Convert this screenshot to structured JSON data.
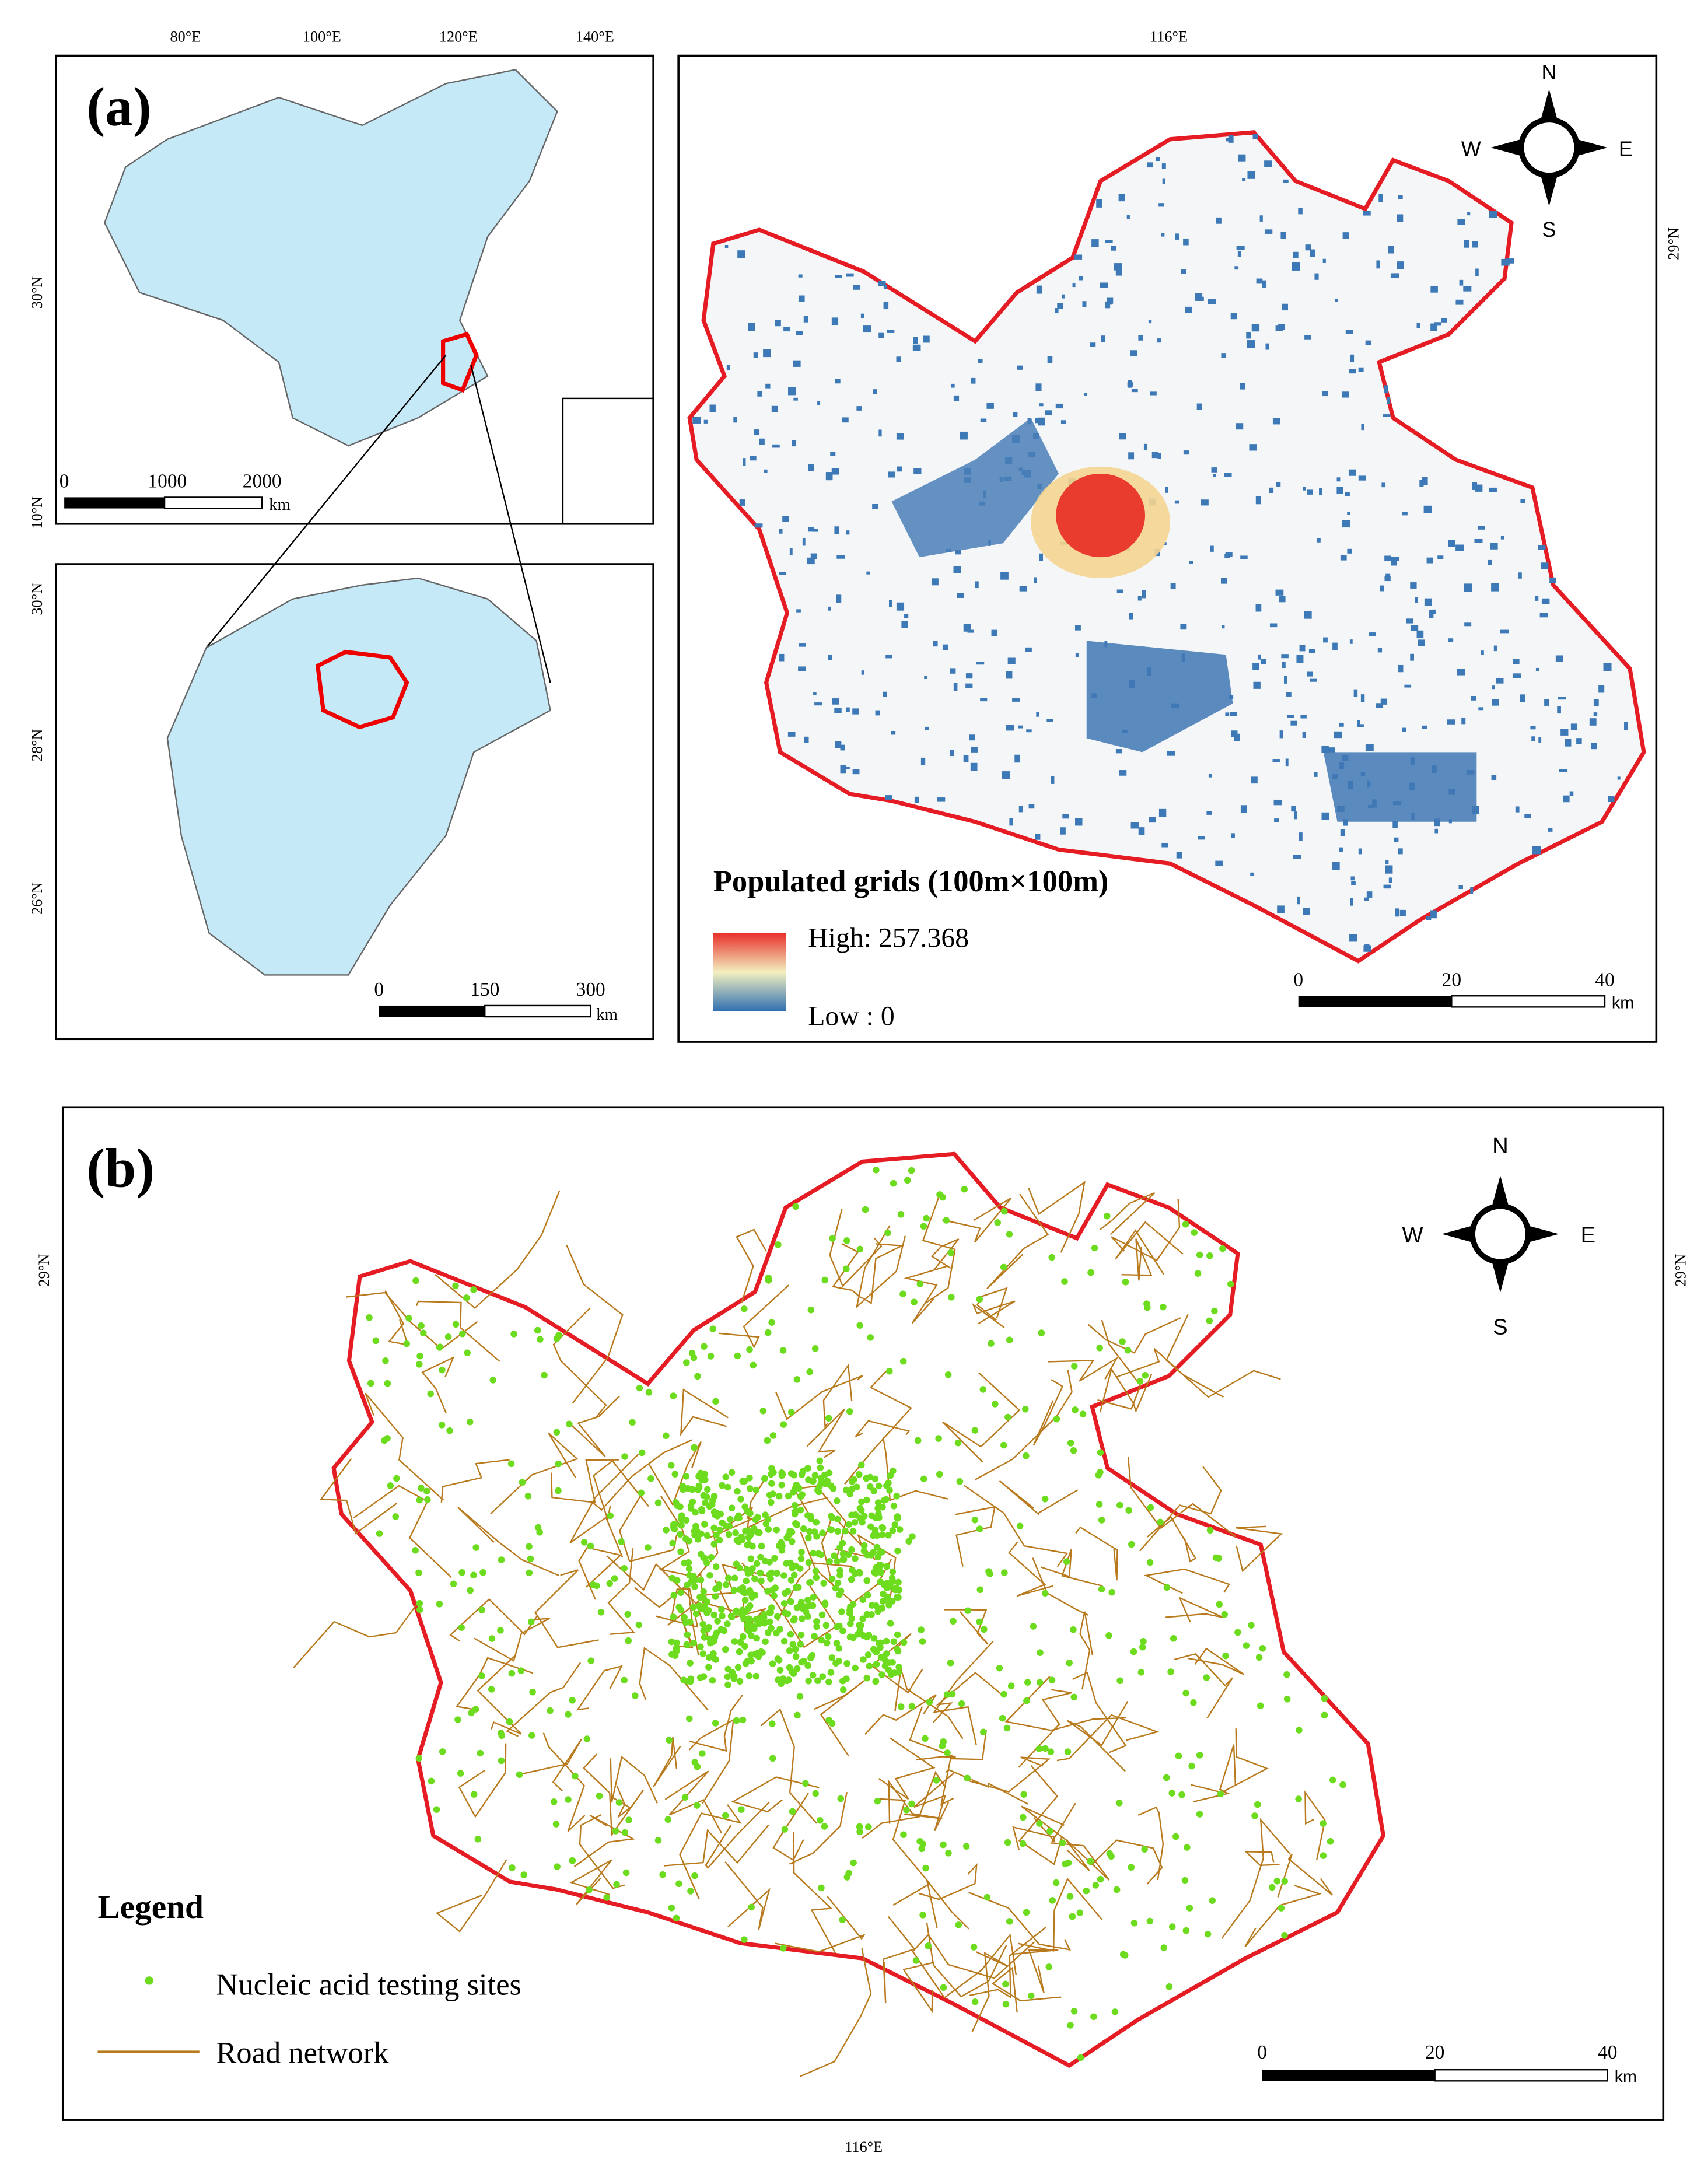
{
  "panel_a": {
    "label": "(a)",
    "china_map": {
      "lon_labels": [
        "80°E",
        "100°E",
        "120°E",
        "140°E"
      ],
      "lat_labels": [
        "30°N",
        "10°N"
      ],
      "scale": [
        "0",
        "1000",
        "2000",
        "km"
      ]
    },
    "province_map": {
      "lat_labels": [
        "30°N",
        "28°N",
        "26°N"
      ],
      "scale": [
        "0",
        "150",
        "300",
        "km"
      ]
    },
    "city_map": {
      "lon_label": "116°E",
      "lat_label": "29°N",
      "compass": [
        "N",
        "E",
        "S",
        "W"
      ],
      "legend_title": "Populated grids (100m×100m)",
      "legend_high": "High: 257.368",
      "legend_low": "Low : 0",
      "scale": [
        "0",
        "20",
        "40",
        "km"
      ]
    }
  },
  "panel_b": {
    "label": "(b)",
    "lon_label": "116°E",
    "lat_label": "29°N",
    "compass": [
      "N",
      "E",
      "S",
      "W"
    ],
    "legend": {
      "title": "Legend",
      "items": [
        "Nucleic acid testing sites",
        "Road network"
      ]
    },
    "scale": [
      "0",
      "20",
      "40",
      "km"
    ]
  }
}
